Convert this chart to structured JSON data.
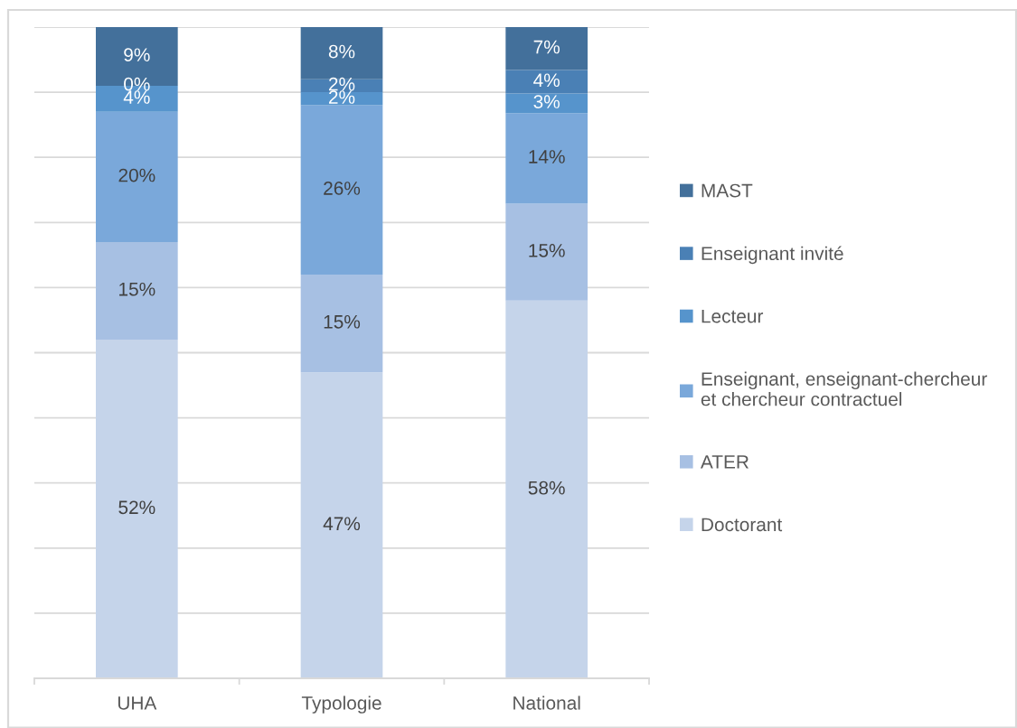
{
  "chart_data": {
    "type": "bar",
    "stacked": true,
    "categories": [
      "UHA",
      "Typologie",
      "National"
    ],
    "series": [
      {
        "name": "Doctorant",
        "color": "#c5d4ea",
        "values": [
          52,
          47,
          58
        ],
        "value_labels": [
          "52%",
          "47%",
          "58%"
        ]
      },
      {
        "name": "ATER",
        "color": "#a7c0e3",
        "values": [
          15,
          15,
          14.9
        ],
        "value_labels": [
          "15%",
          "15%",
          "15%"
        ]
      },
      {
        "name": "Enseignant, enseignant-chercheur\net chercheur contractuel",
        "color": "#7aa8da",
        "values": [
          20,
          26,
          13.9
        ],
        "value_labels": [
          "20%",
          "26%",
          "14%"
        ]
      },
      {
        "name": "Lecteur",
        "color": "#5694cc",
        "values": [
          4,
          2,
          3
        ],
        "value_labels": [
          "4%",
          "2%",
          "3%"
        ]
      },
      {
        "name": "Enseignant invité",
        "color": "#4a80b5",
        "values": [
          0,
          2,
          3.6
        ],
        "value_labels": [
          "0%",
          "2%",
          "4%"
        ]
      },
      {
        "name": "MAST",
        "color": "#43709b",
        "values": [
          9,
          8,
          6.6
        ],
        "value_labels": [
          "9%",
          "8%",
          "7%"
        ]
      }
    ],
    "ylim": [
      0,
      100
    ],
    "yticks": [
      {
        "value": 0,
        "label": null
      },
      {
        "value": 10,
        "label": null
      },
      {
        "value": 20,
        "label": null
      },
      {
        "value": 30,
        "label": null
      },
      {
        "value": 40,
        "label": null
      },
      {
        "value": 50,
        "label": null
      },
      {
        "value": 60,
        "label": null
      },
      {
        "value": 70,
        "label": null
      },
      {
        "value": 80,
        "label": null
      },
      {
        "value": 90,
        "label": null
      },
      {
        "value": 100,
        "label": null
      }
    ],
    "grid": "y",
    "legend": "right",
    "tick_labels": "x"
  }
}
